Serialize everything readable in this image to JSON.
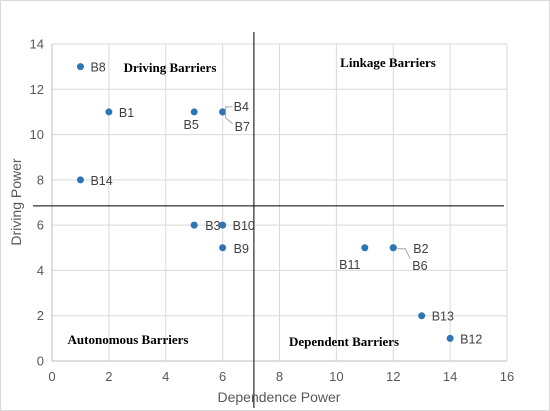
{
  "chart_data": {
    "type": "scatter",
    "xlabel": "Dependence Power",
    "ylabel": "Driving Power",
    "xlim": [
      0,
      16
    ],
    "ylim": [
      0,
      14
    ],
    "x_ticks": [
      0,
      2,
      4,
      6,
      8,
      10,
      12,
      14,
      16
    ],
    "y_ticks": [
      0,
      2,
      4,
      6,
      8,
      10,
      12,
      14
    ],
    "grid": true,
    "marker_color": "#2E75B6",
    "divider_lines": {
      "x": 7.1,
      "y": 6.85
    },
    "quadrant_labels": [
      {
        "key": "driving",
        "text": "Driving Barriers"
      },
      {
        "key": "linkage",
        "text": "Linkage Barriers"
      },
      {
        "key": "autonomous",
        "text": "Autonomous Barriers"
      },
      {
        "key": "dependent",
        "text": "Dependent Barriers"
      }
    ],
    "points": [
      {
        "label": "B1",
        "x": 2,
        "y": 11
      },
      {
        "label": "B2",
        "x": 12,
        "y": 5
      },
      {
        "label": "B3",
        "x": 5,
        "y": 6
      },
      {
        "label": "B4",
        "x": 6,
        "y": 11
      },
      {
        "label": "B5",
        "x": 5,
        "y": 11
      },
      {
        "label": "B6",
        "x": 12,
        "y": 5
      },
      {
        "label": "B7",
        "x": 6,
        "y": 11
      },
      {
        "label": "B8",
        "x": 1,
        "y": 13
      },
      {
        "label": "B9",
        "x": 6,
        "y": 5
      },
      {
        "label": "B10",
        "x": 6,
        "y": 6
      },
      {
        "label": "B11",
        "x": 11,
        "y": 5
      },
      {
        "label": "B12",
        "x": 14,
        "y": 1
      },
      {
        "label": "B13",
        "x": 13,
        "y": 2
      },
      {
        "label": "B14",
        "x": 1,
        "y": 8
      }
    ]
  }
}
